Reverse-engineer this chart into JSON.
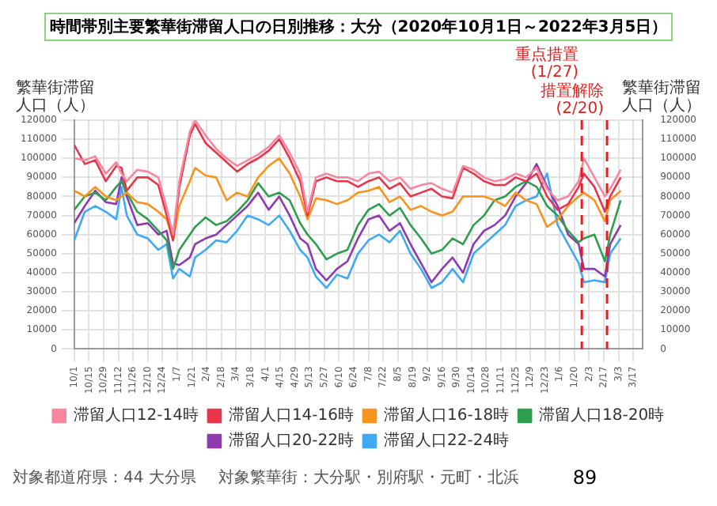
{
  "chart_data": {
    "type": "line",
    "title": "時間帯別主要繁華街滞留人口の日別推移：大分（2020年10月1日～2022年3月5日）",
    "ylabel": "繁華街滞留人口（人）",
    "y2label": "繁華街滞留人口（人）",
    "x": [
      "2020-10-01",
      "2020-10-11",
      "2020-10-21",
      "2020-10-31",
      "2020-11-10",
      "2020-11-15",
      "2020-11-20",
      "2020-11-30",
      "2020-12-10",
      "2020-12-20",
      "2020-12-28",
      "2021-01-03",
      "2021-01-09",
      "2021-01-19",
      "2021-01-24",
      "2021-02-03",
      "2021-02-13",
      "2021-02-23",
      "2021-03-05",
      "2021-03-15",
      "2021-03-25",
      "2021-04-04",
      "2021-04-14",
      "2021-04-24",
      "2021-05-04",
      "2021-05-11",
      "2021-05-19",
      "2021-05-29",
      "2021-06-08",
      "2021-06-18",
      "2021-06-28",
      "2021-07-08",
      "2021-07-18",
      "2021-07-28",
      "2021-08-07",
      "2021-08-17",
      "2021-08-27",
      "2021-09-06",
      "2021-09-16",
      "2021-09-26",
      "2021-10-06",
      "2021-10-16",
      "2021-10-26",
      "2021-11-05",
      "2021-11-15",
      "2021-11-25",
      "2021-12-05",
      "2021-12-15",
      "2021-12-25",
      "2022-01-04",
      "2022-01-14",
      "2022-01-24",
      "2022-01-29",
      "2022-02-08",
      "2022-02-18",
      "2022-02-23",
      "2022-03-05"
    ],
    "series": [
      {
        "name": "滞留人口12-14時",
        "color": "#f7869f",
        "values": [
          100000,
          99000,
          101000,
          92000,
          98000,
          92000,
          88000,
          94000,
          93000,
          90000,
          74000,
          60000,
          88000,
          114000,
          120000,
          112000,
          105000,
          100000,
          96000,
          99000,
          102000,
          106000,
          112000,
          103000,
          92000,
          72000,
          90000,
          92000,
          90000,
          90000,
          88000,
          92000,
          93000,
          88000,
          90000,
          84000,
          86000,
          87000,
          84000,
          82000,
          96000,
          94000,
          90000,
          88000,
          89000,
          92000,
          90000,
          95000,
          84000,
          78000,
          80000,
          88000,
          100000,
          90000,
          80000,
          84000,
          94000
        ]
      },
      {
        "name": "滞留人口14-16時",
        "color": "#e8354a",
        "values": [
          107000,
          97000,
          99000,
          88000,
          96000,
          95000,
          83000,
          90000,
          90000,
          86000,
          70000,
          57000,
          85000,
          112000,
          118000,
          108000,
          103000,
          98000,
          93000,
          97000,
          100000,
          104000,
          110000,
          100000,
          88000,
          70000,
          88000,
          90000,
          88000,
          88000,
          85000,
          88000,
          90000,
          84000,
          87000,
          80000,
          82000,
          84000,
          80000,
          79000,
          95000,
          92000,
          88000,
          86000,
          86000,
          90000,
          88000,
          92000,
          80000,
          73000,
          76000,
          85000,
          92000,
          85000,
          72000,
          80000,
          90000
        ]
      },
      {
        "name": "滞留人口16-18時",
        "color": "#f7941d",
        "values": [
          83000,
          80000,
          85000,
          80000,
          78000,
          80000,
          82000,
          77000,
          76000,
          72000,
          68000,
          57000,
          75000,
          88000,
          95000,
          91000,
          90000,
          78000,
          82000,
          80000,
          90000,
          96000,
          100000,
          92000,
          80000,
          68000,
          79000,
          78000,
          76000,
          78000,
          82000,
          83000,
          85000,
          77000,
          80000,
          73000,
          75000,
          72000,
          70000,
          72000,
          80000,
          80000,
          80000,
          78000,
          75000,
          82000,
          78000,
          76000,
          64000,
          68000,
          75000,
          80000,
          82000,
          78000,
          67000,
          78000,
          83000
        ]
      },
      {
        "name": "滞留人口18-20時",
        "color": "#2e9e4f",
        "values": [
          73000,
          80000,
          82000,
          78000,
          85000,
          88000,
          82000,
          72000,
          68000,
          62000,
          57000,
          42000,
          52000,
          60000,
          64000,
          69000,
          65000,
          67000,
          72000,
          78000,
          87000,
          80000,
          82000,
          78000,
          66000,
          60000,
          55000,
          47000,
          50000,
          52000,
          65000,
          73000,
          76000,
          70000,
          74000,
          65000,
          58000,
          50000,
          52000,
          58000,
          55000,
          65000,
          70000,
          78000,
          80000,
          85000,
          88000,
          85000,
          75000,
          70000,
          62000,
          56000,
          58000,
          60000,
          46000,
          60000,
          78000
        ]
      },
      {
        "name": "滞留人口20-22時",
        "color": "#8e3bb0",
        "values": [
          66000,
          75000,
          83000,
          77000,
          76000,
          90000,
          80000,
          65000,
          66000,
          60000,
          62000,
          45000,
          44000,
          48000,
          55000,
          58000,
          60000,
          65000,
          70000,
          75000,
          82000,
          73000,
          80000,
          70000,
          58000,
          55000,
          42000,
          36000,
          42000,
          46000,
          58000,
          68000,
          70000,
          62000,
          66000,
          55000,
          45000,
          35000,
          42000,
          48000,
          40000,
          55000,
          62000,
          65000,
          70000,
          80000,
          87000,
          97000,
          85000,
          75000,
          60000,
          55000,
          42000,
          42000,
          38000,
          55000,
          65000
        ]
      },
      {
        "name": "滞留人口22-24時",
        "color": "#3fa9f5",
        "values": [
          57000,
          72000,
          75000,
          72000,
          68000,
          85000,
          70000,
          60000,
          58000,
          52000,
          55000,
          37000,
          42000,
          38000,
          48000,
          52000,
          57000,
          56000,
          62000,
          70000,
          68000,
          65000,
          70000,
          62000,
          52000,
          48000,
          38000,
          32000,
          39000,
          37000,
          50000,
          57000,
          60000,
          56000,
          62000,
          50000,
          42000,
          32000,
          35000,
          42000,
          35000,
          50000,
          55000,
          60000,
          65000,
          75000,
          78000,
          80000,
          92000,
          65000,
          55000,
          45000,
          35000,
          36000,
          35000,
          50000,
          58000
        ]
      }
    ],
    "xlim": [
      "2020-10-01",
      "2022-03-26"
    ],
    "xticks": [
      {
        "value": "2020-10-01",
        "label": "10/1"
      },
      {
        "value": "2020-10-15",
        "label": "10/15"
      },
      {
        "value": "2020-10-29",
        "label": "10/29"
      },
      {
        "value": "2020-11-12",
        "label": "11/12"
      },
      {
        "value": "2020-11-26",
        "label": "11/26"
      },
      {
        "value": "2020-12-10",
        "label": "12/10"
      },
      {
        "value": "2020-12-24",
        "label": "12/24"
      },
      {
        "value": "2021-01-07",
        "label": "1/7"
      },
      {
        "value": "2021-01-21",
        "label": "1/21"
      },
      {
        "value": "2021-02-04",
        "label": "2/4"
      },
      {
        "value": "2021-02-18",
        "label": "2/18"
      },
      {
        "value": "2021-03-04",
        "label": "3/4"
      },
      {
        "value": "2021-03-18",
        "label": "3/18"
      },
      {
        "value": "2021-04-01",
        "label": "4/1"
      },
      {
        "value": "2021-04-15",
        "label": "4/15"
      },
      {
        "value": "2021-04-29",
        "label": "4/29"
      },
      {
        "value": "2021-05-13",
        "label": "5/13"
      },
      {
        "value": "2021-05-27",
        "label": "5/27"
      },
      {
        "value": "2021-06-10",
        "label": "6/10"
      },
      {
        "value": "2021-06-24",
        "label": "6/24"
      },
      {
        "value": "2021-07-08",
        "label": "7/8"
      },
      {
        "value": "2021-07-22",
        "label": "7/22"
      },
      {
        "value": "2021-08-05",
        "label": "8/5"
      },
      {
        "value": "2021-08-19",
        "label": "8/19"
      },
      {
        "value": "2021-09-02",
        "label": "9/2"
      },
      {
        "value": "2021-09-16",
        "label": "9/16"
      },
      {
        "value": "2021-09-30",
        "label": "9/30"
      },
      {
        "value": "2021-10-14",
        "label": "10/14"
      },
      {
        "value": "2021-10-28",
        "label": "10/28"
      },
      {
        "value": "2021-11-11",
        "label": "11/11"
      },
      {
        "value": "2021-11-25",
        "label": "11/25"
      },
      {
        "value": "2021-12-09",
        "label": "12/9"
      },
      {
        "value": "2021-12-23",
        "label": "12/23"
      },
      {
        "value": "2022-01-06",
        "label": "1/6"
      },
      {
        "value": "2022-01-20",
        "label": "1/20"
      },
      {
        "value": "2022-02-03",
        "label": "2/3"
      },
      {
        "value": "2022-02-17",
        "label": "2/17"
      },
      {
        "value": "2022-03-03",
        "label": "3/3"
      },
      {
        "value": "2022-03-17",
        "label": "3/17"
      }
    ],
    "ylim": [
      0,
      120000
    ],
    "yticks": [
      0,
      10000,
      20000,
      30000,
      40000,
      50000,
      60000,
      70000,
      80000,
      90000,
      100000,
      110000,
      120000
    ],
    "y2lim": [
      0,
      120000
    ],
    "y2ticks": [
      0,
      10000,
      20000,
      30000,
      40000,
      50000,
      60000,
      70000,
      80000,
      90000,
      100000,
      110000,
      120000
    ],
    "ref_lines": [
      {
        "axis": "x",
        "value": "2022-01-27",
        "label": "重点措置(1/27)",
        "color": "#e02020",
        "line_style": "dashed"
      },
      {
        "axis": "x",
        "value": "2022-02-20",
        "label": "措置解除(2/20)",
        "color": "#e02020",
        "line_style": "dashed"
      }
    ],
    "annotations": [
      "対象都道府県：44 大分県",
      "対象繁華街：大分駅・別府駅・元町・北浜",
      "89"
    ],
    "grid": true,
    "legend": "bottom",
    "marker": "none",
    "line_style": "solid"
  }
}
